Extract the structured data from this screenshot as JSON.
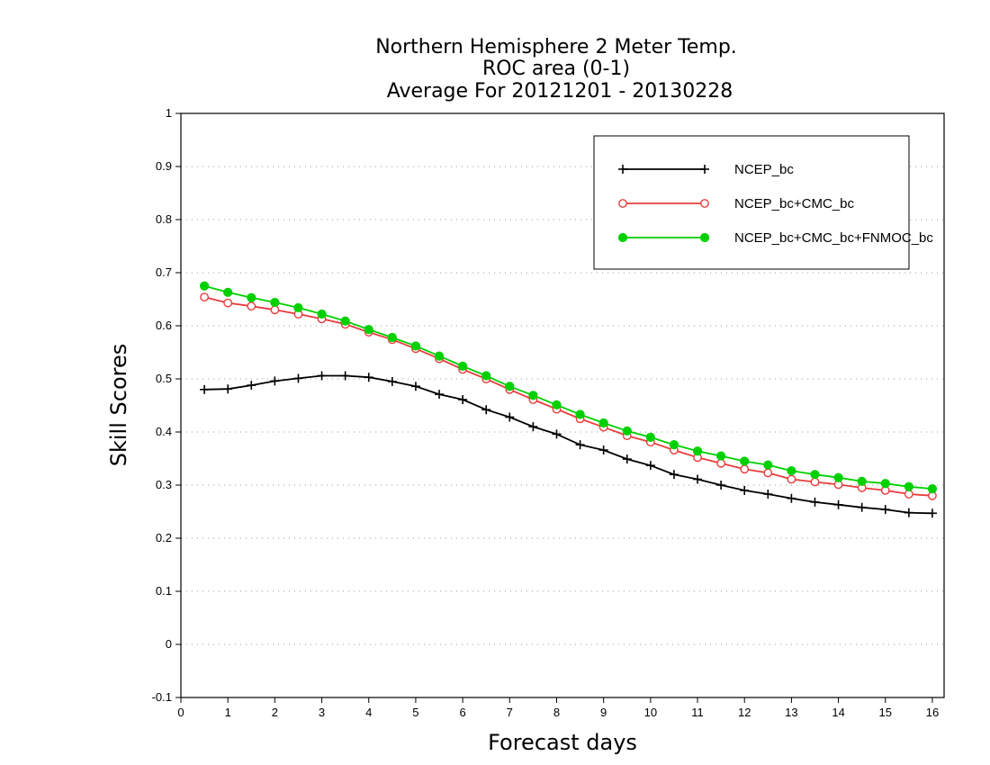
{
  "chart_data": {
    "type": "line",
    "title": [
      "Northern Hemisphere 2 Meter Temp.",
      "ROC area (0-1)",
      "Average For 20121201 - 20130228"
    ],
    "xlabel": "Forecast days",
    "ylabel": "Skill Scores",
    "xlim": [
      0,
      16.25
    ],
    "ylim": [
      -0.1,
      1
    ],
    "xticks": [
      0,
      1,
      2,
      3,
      4,
      5,
      6,
      7,
      8,
      9,
      10,
      11,
      12,
      13,
      14,
      15,
      16
    ],
    "xtick_labels": [
      "0",
      "1",
      "2",
      "3",
      "4",
      "5",
      "6",
      "7",
      "8",
      "9",
      "10",
      "11",
      "12",
      "13",
      "14",
      "15",
      "16"
    ],
    "yticks": [
      -0.1,
      0,
      0.1,
      0.2,
      0.3,
      0.4,
      0.5,
      0.6,
      0.7,
      0.8,
      0.9,
      1
    ],
    "ytick_labels": [
      "-0.1",
      "0",
      "0.1",
      "0.2",
      "0.3",
      "0.4",
      "0.5",
      "0.6",
      "0.7",
      "0.8",
      "0.9",
      "1"
    ],
    "grid": "horizontal dotted",
    "legend_position": "top-right",
    "x": [
      0.5,
      1,
      1.5,
      2,
      2.5,
      3,
      3.5,
      4,
      4.5,
      5,
      5.5,
      6,
      6.5,
      7,
      7.5,
      8,
      8.5,
      9,
      9.5,
      10,
      10.5,
      11,
      11.5,
      12,
      12.5,
      13,
      13.5,
      14,
      14.5,
      15,
      15.5,
      16
    ],
    "series": [
      {
        "name": "NCEP_bc",
        "color": "#000000",
        "marker": "plus",
        "values": [
          0.48,
          0.481,
          0.488,
          0.496,
          0.501,
          0.506,
          0.506,
          0.503,
          0.495,
          0.486,
          0.471,
          0.461,
          0.442,
          0.428,
          0.41,
          0.396,
          0.376,
          0.366,
          0.349,
          0.337,
          0.32,
          0.311,
          0.3,
          0.29,
          0.283,
          0.275,
          0.268,
          0.263,
          0.258,
          0.254,
          0.248,
          0.247
        ]
      },
      {
        "name": "NCEP_bc+CMC_bc",
        "color": "#e83c3c",
        "marker": "open-circle",
        "values": [
          0.654,
          0.643,
          0.637,
          0.63,
          0.622,
          0.613,
          0.603,
          0.588,
          0.574,
          0.557,
          0.538,
          0.518,
          0.5,
          0.48,
          0.461,
          0.443,
          0.425,
          0.409,
          0.393,
          0.381,
          0.366,
          0.352,
          0.341,
          0.33,
          0.323,
          0.311,
          0.306,
          0.301,
          0.295,
          0.29,
          0.283,
          0.28
        ]
      },
      {
        "name": "NCEP_bc+CMC_bc+FNMOC_bc",
        "color": "#00d000",
        "marker": "filled-circle",
        "values": [
          0.675,
          0.663,
          0.653,
          0.644,
          0.634,
          0.622,
          0.609,
          0.593,
          0.578,
          0.562,
          0.543,
          0.524,
          0.506,
          0.486,
          0.469,
          0.451,
          0.433,
          0.417,
          0.402,
          0.39,
          0.376,
          0.364,
          0.355,
          0.345,
          0.338,
          0.327,
          0.32,
          0.314,
          0.307,
          0.303,
          0.297,
          0.293
        ]
      }
    ]
  }
}
